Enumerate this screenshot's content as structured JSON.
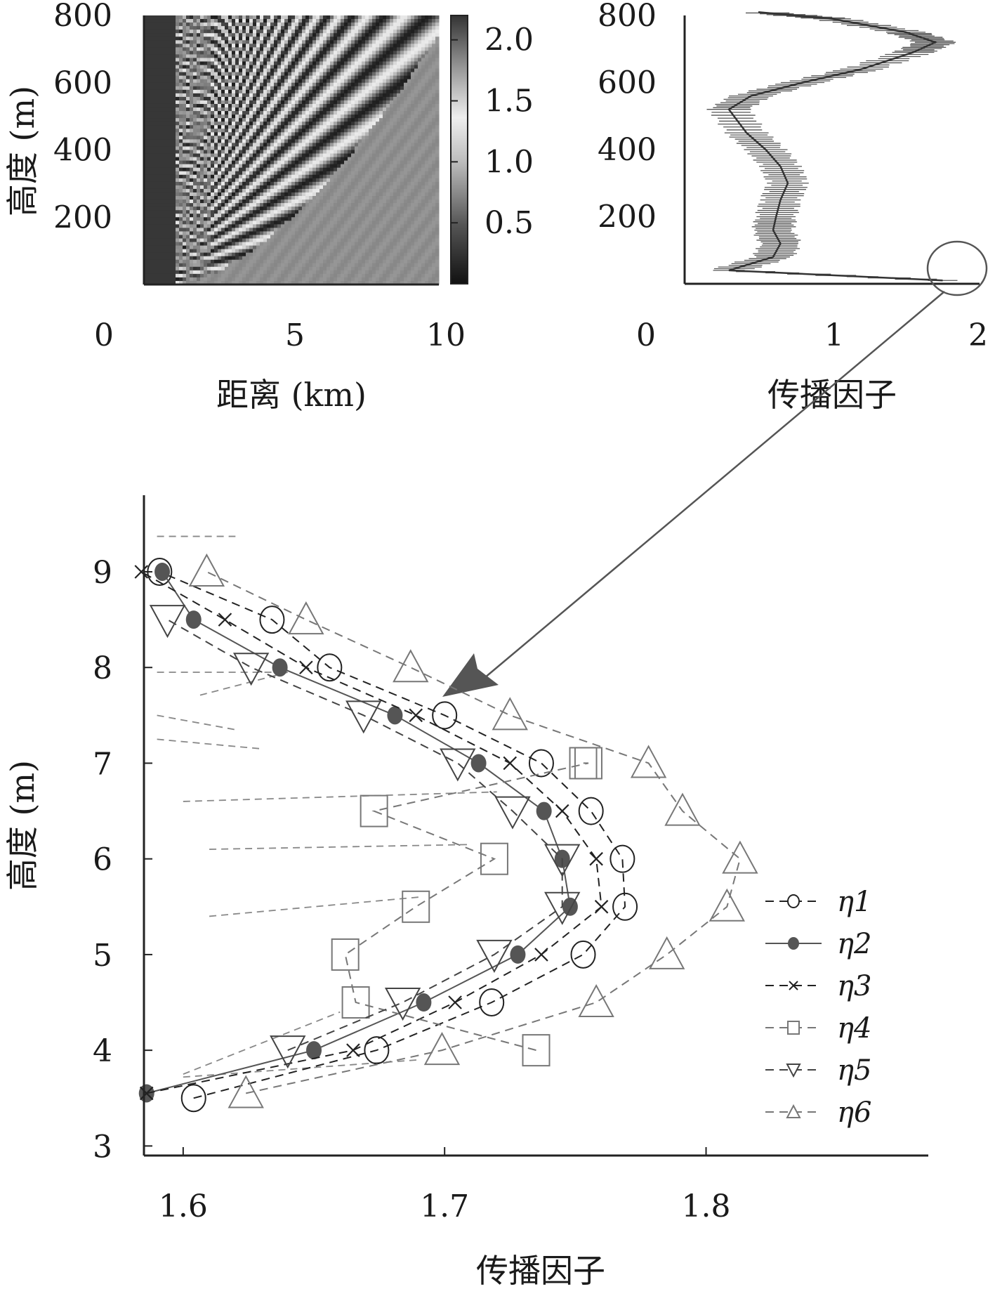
{
  "chart_data": [
    {
      "type": "heatmap",
      "panel": "top-left",
      "xlabel": "距离 (km)",
      "ylabel": "高度 (m)",
      "xlim": [
        0,
        10
      ],
      "ylim": [
        0,
        800
      ],
      "x_ticks": [
        "0",
        "5",
        "10"
      ],
      "y_ticks": [
        "200",
        "400",
        "600",
        "800"
      ],
      "colorbar": {
        "ticks": [
          "0.5",
          "1.0",
          "1.5",
          "2.0"
        ],
        "range": [
          0,
          2.2
        ],
        "colormap": "grayscale"
      }
    },
    {
      "type": "line",
      "panel": "top-right",
      "xlabel": "传播因子",
      "xlim": [
        0,
        2
      ],
      "ylim": [
        0,
        800
      ],
      "x_ticks": [
        "0",
        "1",
        "2"
      ],
      "y_ticks": [
        "200",
        "400",
        "600",
        "800"
      ],
      "series": [
        {
          "style": "solid-with-horizontal-error-bars",
          "x": [
            1.75,
            0.3,
            0.6,
            0.65,
            0.6,
            0.62,
            0.65,
            0.7,
            0.65,
            0.55,
            0.42,
            0.3,
            0.45,
            0.8,
            1.2,
            1.55,
            1.7,
            1.5,
            1.0,
            0.5
          ],
          "y": [
            10,
            40,
            80,
            120,
            160,
            200,
            250,
            300,
            350,
            400,
            450,
            520,
            560,
            600,
            640,
            690,
            720,
            750,
            790,
            810
          ]
        }
      ]
    },
    {
      "type": "line",
      "panel": "bottom",
      "xlabel": "传播因子",
      "ylabel": "高度 (m)",
      "xlim": [
        1.585,
        1.885
      ],
      "ylim": [
        2.9,
        9.8
      ],
      "x_ticks": [
        "1.6",
        "1.7",
        "1.8"
      ],
      "y_ticks": [
        "3",
        "4",
        "5",
        "6",
        "7",
        "8",
        "9"
      ],
      "series": [
        {
          "name": "η1",
          "marker": "open-circle",
          "linestyle": "dashed",
          "x": [
            1.604,
            1.674,
            1.718,
            1.753,
            1.769,
            1.768,
            1.756,
            1.737,
            1.7,
            1.656,
            1.634,
            1.591
          ],
          "y": [
            3.5,
            4.0,
            4.5,
            5.0,
            5.5,
            6.0,
            6.5,
            7.0,
            7.5,
            8.0,
            8.5,
            9.0
          ]
        },
        {
          "name": "η2",
          "marker": "filled-circle",
          "linestyle": "solid",
          "x": [
            1.586,
            1.65,
            1.692,
            1.728,
            1.748,
            1.745,
            1.738,
            1.713,
            1.681,
            1.637,
            1.604,
            1.592
          ],
          "y": [
            3.55,
            4.0,
            4.5,
            5.0,
            5.5,
            6.0,
            6.5,
            7.0,
            7.5,
            8.0,
            8.5,
            9.0
          ]
        },
        {
          "name": "η3",
          "marker": "x",
          "linestyle": "dashed",
          "x": [
            1.586,
            1.665,
            1.704,
            1.737,
            1.76,
            1.758,
            1.745,
            1.725,
            1.689,
            1.647,
            1.616,
            1.584
          ],
          "y": [
            3.55,
            4.0,
            4.5,
            5.0,
            5.5,
            6.0,
            6.5,
            7.0,
            7.5,
            8.0,
            8.5,
            9.0
          ]
        },
        {
          "name": "η4",
          "marker": "open-square",
          "linestyle": "dashed",
          "x": [
            1.735,
            1.666,
            1.662,
            1.689,
            1.719,
            1.673,
            1.755,
            1.753
          ],
          "y": [
            4.0,
            4.5,
            5.0,
            5.5,
            6.0,
            6.5,
            7.0,
            7.0
          ]
        },
        {
          "name": "η5",
          "marker": "open-triangle-down",
          "linestyle": "dashed",
          "x": [
            1.64,
            1.684,
            1.719,
            1.745,
            1.745,
            1.726,
            1.705,
            1.669,
            1.626,
            1.594
          ],
          "y": [
            4.0,
            4.5,
            5.0,
            5.5,
            6.0,
            6.5,
            7.0,
            7.5,
            8.0,
            8.5
          ]
        },
        {
          "name": "η6",
          "marker": "open-triangle-up",
          "linestyle": "dashed",
          "x": [
            1.624,
            1.699,
            1.758,
            1.785,
            1.808,
            1.813,
            1.791,
            1.778,
            1.725,
            1.687,
            1.647,
            1.609
          ],
          "y": [
            3.55,
            4.0,
            4.5,
            5.0,
            5.5,
            6.0,
            6.5,
            7.0,
            7.5,
            8.0,
            8.5,
            9.0
          ]
        }
      ],
      "legend": {
        "placement": "right",
        "entries": [
          "η1",
          "η2",
          "η3",
          "η4",
          "η5",
          "η6"
        ]
      }
    }
  ]
}
